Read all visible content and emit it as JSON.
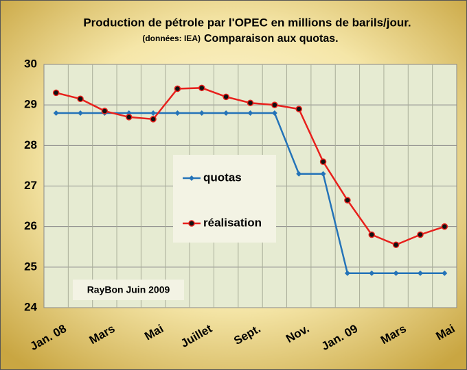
{
  "chart_data": {
    "type": "line",
    "title": "Production de pétrole par l'OPEC en millions de barils/jour.",
    "source_note": "(données: IEA)",
    "subtitle": "Comparaison aux quotas.",
    "annotation": "RayBon Juin 2009",
    "categories": [
      "Jan. 08",
      null,
      "Mars",
      null,
      "Mai",
      null,
      "Juillet",
      null,
      "Sept.",
      null,
      "Nov.",
      null,
      "Jan. 09",
      null,
      "Mars",
      null,
      "Mai"
    ],
    "series": [
      {
        "name": "quotas",
        "color": "#2473b8",
        "marker": "diamond",
        "values": [
          28.8,
          28.8,
          28.8,
          28.8,
          28.8,
          28.8,
          28.8,
          28.8,
          28.8,
          28.8,
          27.3,
          27.3,
          24.85,
          24.85,
          24.85,
          24.85,
          24.85
        ]
      },
      {
        "name": "réalisation",
        "color": "#e8201c",
        "marker": "circle",
        "values": [
          29.3,
          29.15,
          28.85,
          28.7,
          28.65,
          29.4,
          29.42,
          29.2,
          29.05,
          29.0,
          28.9,
          27.6,
          26.65,
          25.8,
          25.55,
          25.8,
          26.0
        ]
      }
    ],
    "ylim": [
      24,
      30
    ],
    "yticks": [
      24,
      25,
      26,
      27,
      28,
      29,
      30
    ],
    "grid": true
  }
}
